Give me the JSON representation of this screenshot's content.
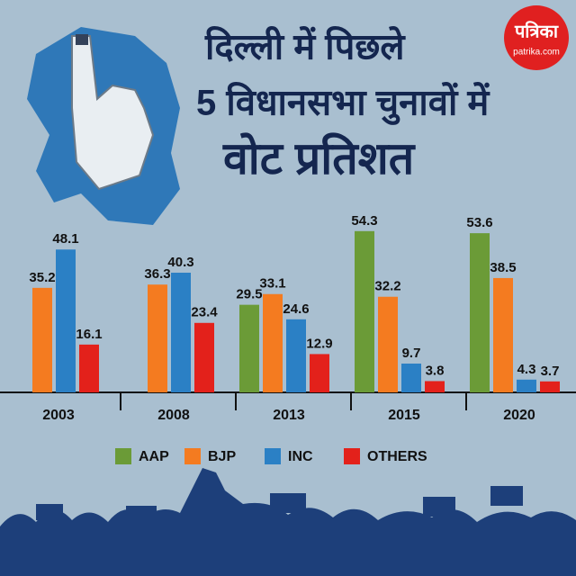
{
  "title_lines": [
    "दिल्ली में पिछले",
    "5 विधानसभा चुनावों में",
    "वोट प्रतिशत"
  ],
  "logo": {
    "name": "पत्रिका",
    "site": "patrika.com"
  },
  "chart_data": {
    "type": "bar",
    "categories": [
      "2003",
      "2008",
      "2013",
      "2015",
      "2020"
    ],
    "series": [
      {
        "name": "AAP",
        "color": "#6b9b37",
        "values": [
          null,
          null,
          29.5,
          54.3,
          53.6
        ]
      },
      {
        "name": "BJP",
        "color": "#f47b20",
        "values": [
          35.2,
          36.3,
          33.1,
          32.2,
          38.5
        ]
      },
      {
        "name": "INC",
        "color": "#2b80c5",
        "values": [
          48.1,
          40.3,
          24.6,
          9.7,
          4.3
        ]
      },
      {
        "name": "OTHERS",
        "color": "#e3211b",
        "values": [
          16.1,
          23.4,
          12.9,
          3.8,
          3.7
        ]
      }
    ],
    "ylim": [
      0,
      60
    ]
  }
}
